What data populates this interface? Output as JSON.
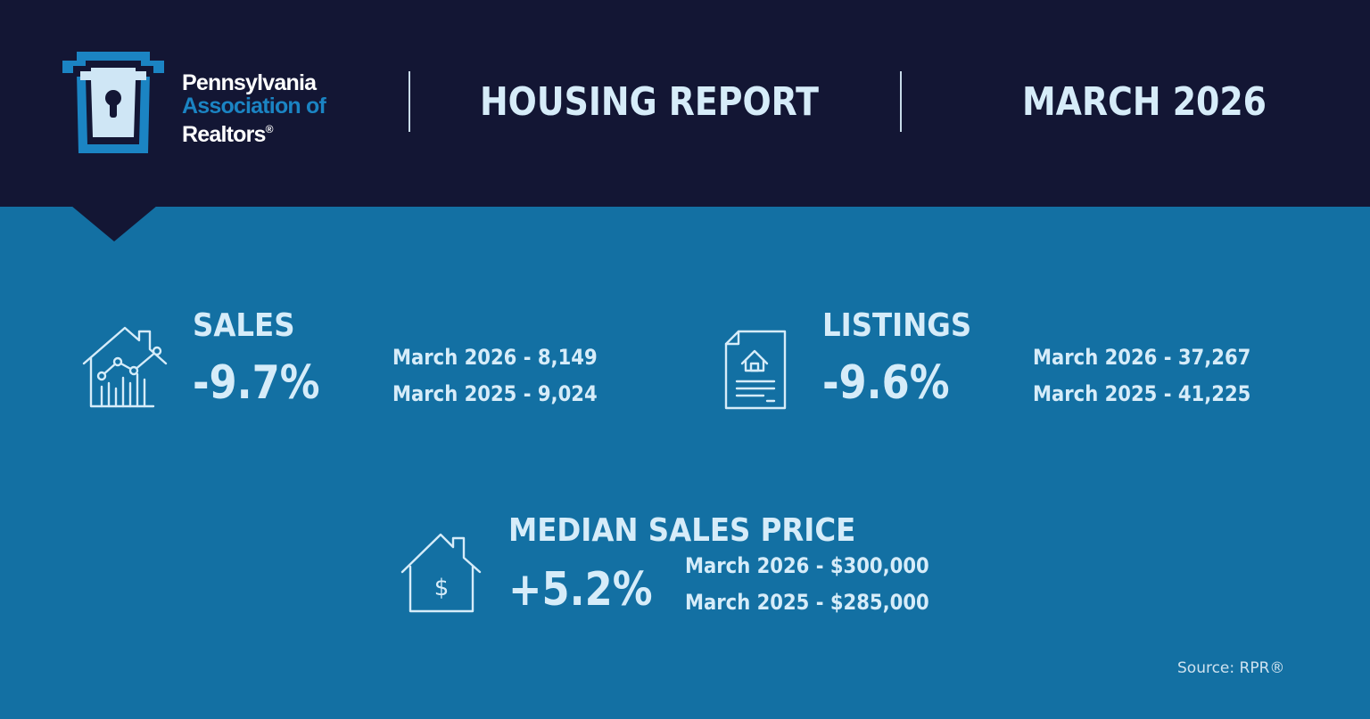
{
  "header": {
    "logo": {
      "line1": "Pennsylvania",
      "line2": "Association of",
      "line3": "Realtors",
      "mark": "®"
    },
    "title": "HOUSING REPORT",
    "period": "MARCH 2026"
  },
  "stats": {
    "sales": {
      "icon": "house-chart-icon",
      "label": "SALES",
      "change": "-9.7%",
      "current": "March 2026 - 8,149",
      "previous": "March 2025 - 9,024"
    },
    "listings": {
      "icon": "house-document-icon",
      "label": "LISTINGS",
      "change": "-9.6%",
      "current": "March 2026 - 37,267",
      "previous": "March 2025 - 41,225"
    },
    "median_price": {
      "icon": "house-dollar-icon",
      "label": "MEDIAN SALES PRICE",
      "change": "+5.2%",
      "current": "March 2026 - $300,000",
      "previous": "March 2025 - $285,000"
    }
  },
  "footer": {
    "source": "Source: RPR®"
  },
  "colors": {
    "header_bg": "#131634",
    "body_bg": "#1370a3",
    "text": "#d6ecf9",
    "logo_accent": "#1b84c3"
  }
}
